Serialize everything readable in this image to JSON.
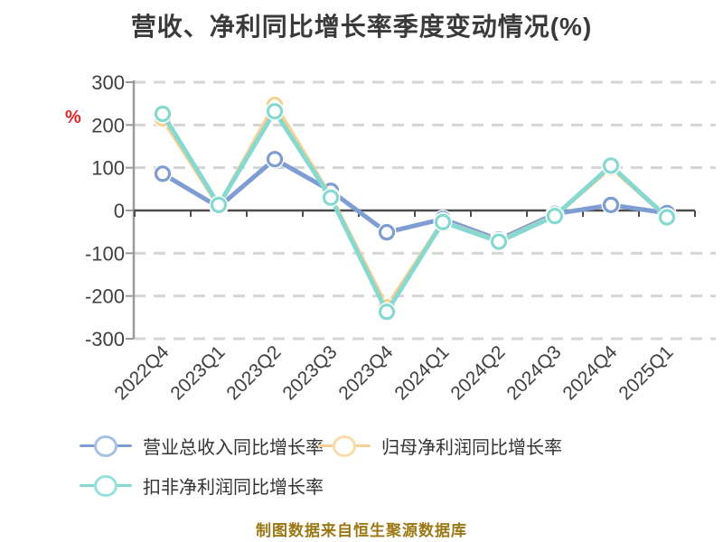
{
  "title": "营收、净利同比增长率季度变动情况(%)",
  "y_axis_unit": "%",
  "footer_note": "制图数据来自恒生聚源数据库",
  "colors": {
    "title_text": "#3a3a3a",
    "axis_label_text": "#3f3f3f",
    "y_axis_line": "#9a9a9a",
    "zero_axis_line": "#4d4d4d",
    "gridline": "#d5d5d5",
    "unit_label_red": "#e62222",
    "footer_text": "#9c7815",
    "legend_text": "#333333"
  },
  "chart_data": {
    "type": "line",
    "title": "营收、净利同比增长率季度变动情况(%)",
    "xlabel": "",
    "ylabel": "%",
    "ylim": [
      -300,
      300
    ],
    "y_ticks": [
      300,
      200,
      100,
      0,
      -100,
      -200,
      -300
    ],
    "grid": "dashed horizontal",
    "legend_position": "bottom",
    "categories": [
      "2022Q4",
      "2023Q1",
      "2023Q2",
      "2023Q3",
      "2023Q4",
      "2024Q1",
      "2024Q2",
      "2024Q3",
      "2024Q4",
      "2025Q1"
    ],
    "series": [
      {
        "id": "revenue-yoy",
        "name": "营业总收入同比增长率",
        "color": "#7e9dd3",
        "ring": "#a5c0e5",
        "values": [
          86,
          8,
          120,
          46,
          -51,
          -20,
          -68,
          -8,
          13,
          -6
        ]
      },
      {
        "id": "parent-net-profit-yoy",
        "name": "归母净利润同比增长率",
        "color": "#f8d093",
        "ring": "#fbdca8",
        "values": [
          215,
          11,
          247,
          32,
          -226,
          -26,
          -72,
          -12,
          101,
          -15
        ]
      },
      {
        "id": "non-gaap-net-profit-yoy",
        "name": "扣非净利润同比增长率",
        "color": "#85d9d0",
        "ring": "#92e2d9",
        "values": [
          226,
          13,
          232,
          30,
          -237,
          -27,
          -73,
          -13,
          105,
          -16
        ]
      }
    ]
  }
}
